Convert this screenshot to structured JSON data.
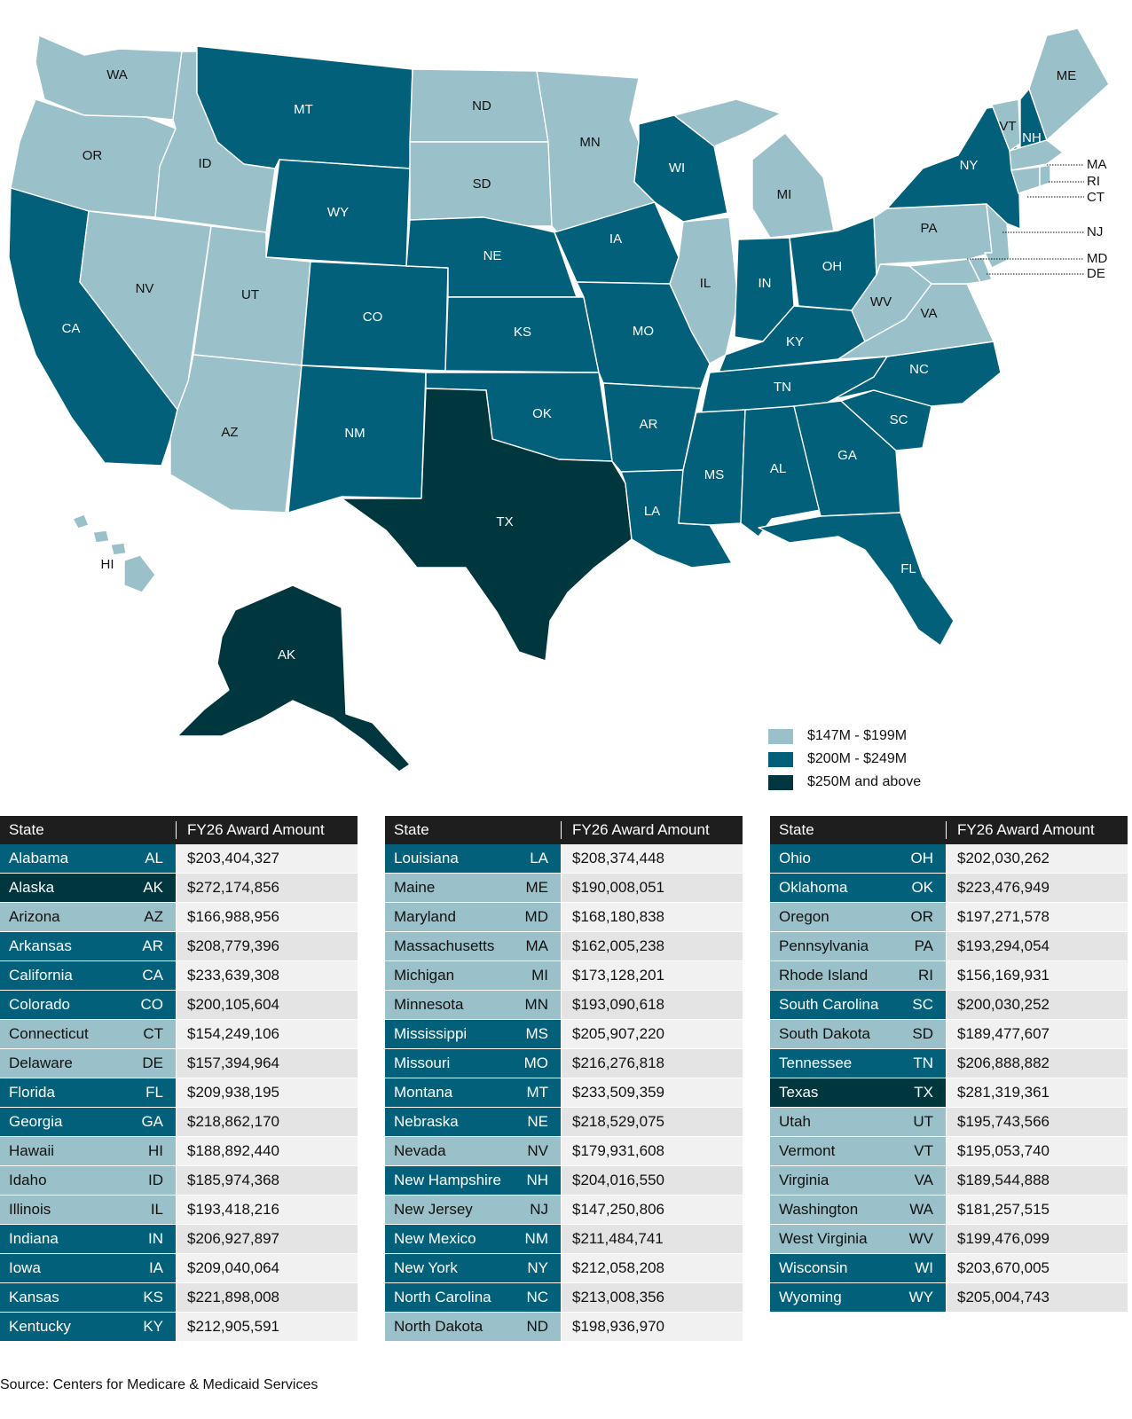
{
  "colors": {
    "low": "#9ac0ca",
    "mid": "#03607a",
    "high": "#00373e",
    "table_header": "#1e1e1e"
  },
  "legend": [
    {
      "label": "$147M - $199M",
      "tier": "low"
    },
    {
      "label": "$200M - $249M",
      "tier": "mid"
    },
    {
      "label": "$250M and above",
      "tier": "high"
    }
  ],
  "map_labels": {
    "WA": "WA",
    "OR": "OR",
    "CA": "CA",
    "ID": "ID",
    "NV": "NV",
    "MT": "MT",
    "WY": "WY",
    "UT": "UT",
    "AZ": "AZ",
    "CO": "CO",
    "NM": "NM",
    "ND": "ND",
    "SD": "SD",
    "NE": "NE",
    "KS": "KS",
    "OK": "OK",
    "TX": "TX",
    "MN": "MN",
    "IA": "IA",
    "MO": "MO",
    "AR": "AR",
    "LA": "LA",
    "WI": "WI",
    "IL": "IL",
    "MI": "MI",
    "IN": "IN",
    "OH": "OH",
    "KY": "KY",
    "TN": "TN",
    "MS": "MS",
    "AL": "AL",
    "GA": "GA",
    "FL": "FL",
    "SC": "SC",
    "NC": "NC",
    "VA": "VA",
    "WV": "WV",
    "PA": "PA",
    "NY": "NY",
    "VT": "VT",
    "NH": "NH",
    "ME": "ME",
    "HI": "HI",
    "AK": "AK",
    "MA": "MA",
    "RI": "RI",
    "CT": "CT",
    "NJ": "NJ",
    "MD": "MD",
    "DE": "DE"
  },
  "table": {
    "col_state": "State",
    "col_amount": "FY26 Award Amount",
    "columns": [
      [
        {
          "name": "Alabama",
          "abbr": "AL",
          "amount": "$203,404,327",
          "tier": "mid"
        },
        {
          "name": "Alaska",
          "abbr": "AK",
          "amount": "$272,174,856",
          "tier": "high"
        },
        {
          "name": "Arizona",
          "abbr": "AZ",
          "amount": "$166,988,956",
          "tier": "low"
        },
        {
          "name": "Arkansas",
          "abbr": "AR",
          "amount": "$208,779,396",
          "tier": "mid"
        },
        {
          "name": "California",
          "abbr": "CA",
          "amount": "$233,639,308",
          "tier": "mid"
        },
        {
          "name": "Colorado",
          "abbr": "CO",
          "amount": "$200,105,604",
          "tier": "mid"
        },
        {
          "name": "Connecticut",
          "abbr": "CT",
          "amount": "$154,249,106",
          "tier": "low"
        },
        {
          "name": "Delaware",
          "abbr": "DE",
          "amount": "$157,394,964",
          "tier": "low"
        },
        {
          "name": "Florida",
          "abbr": "FL",
          "amount": "$209,938,195",
          "tier": "mid"
        },
        {
          "name": "Georgia",
          "abbr": "GA",
          "amount": "$218,862,170",
          "tier": "mid"
        },
        {
          "name": "Hawaii",
          "abbr": "HI",
          "amount": "$188,892,440",
          "tier": "low"
        },
        {
          "name": "Idaho",
          "abbr": "ID",
          "amount": "$185,974,368",
          "tier": "low"
        },
        {
          "name": "Illinois",
          "abbr": "IL",
          "amount": "$193,418,216",
          "tier": "low"
        },
        {
          "name": "Indiana",
          "abbr": "IN",
          "amount": "$206,927,897",
          "tier": "mid"
        },
        {
          "name": "Iowa",
          "abbr": "IA",
          "amount": "$209,040,064",
          "tier": "mid"
        },
        {
          "name": "Kansas",
          "abbr": "KS",
          "amount": "$221,898,008",
          "tier": "mid"
        },
        {
          "name": "Kentucky",
          "abbr": "KY",
          "amount": "$212,905,591",
          "tier": "mid"
        }
      ],
      [
        {
          "name": "Louisiana",
          "abbr": "LA",
          "amount": "$208,374,448",
          "tier": "mid"
        },
        {
          "name": "Maine",
          "abbr": "ME",
          "amount": "$190,008,051",
          "tier": "low"
        },
        {
          "name": "Maryland",
          "abbr": "MD",
          "amount": "$168,180,838",
          "tier": "low"
        },
        {
          "name": "Massachusetts",
          "abbr": "MA",
          "amount": "$162,005,238",
          "tier": "low"
        },
        {
          "name": "Michigan",
          "abbr": "MI",
          "amount": "$173,128,201",
          "tier": "low"
        },
        {
          "name": "Minnesota",
          "abbr": "MN",
          "amount": "$193,090,618",
          "tier": "low"
        },
        {
          "name": "Mississippi",
          "abbr": "MS",
          "amount": "$205,907,220",
          "tier": "mid"
        },
        {
          "name": "Missouri",
          "abbr": "MO",
          "amount": "$216,276,818",
          "tier": "mid"
        },
        {
          "name": "Montana",
          "abbr": "MT",
          "amount": "$233,509,359",
          "tier": "mid"
        },
        {
          "name": "Nebraska",
          "abbr": "NE",
          "amount": "$218,529,075",
          "tier": "mid"
        },
        {
          "name": "Nevada",
          "abbr": "NV",
          "amount": "$179,931,608",
          "tier": "low"
        },
        {
          "name": "New Hampshire",
          "abbr": "NH",
          "amount": "$204,016,550",
          "tier": "mid"
        },
        {
          "name": "New Jersey",
          "abbr": "NJ",
          "amount": "$147,250,806",
          "tier": "low"
        },
        {
          "name": "New Mexico",
          "abbr": "NM",
          "amount": "$211,484,741",
          "tier": "mid"
        },
        {
          "name": "New York",
          "abbr": "NY",
          "amount": "$212,058,208",
          "tier": "mid"
        },
        {
          "name": "North Carolina",
          "abbr": "NC",
          "amount": "$213,008,356",
          "tier": "mid"
        },
        {
          "name": "North Dakota",
          "abbr": "ND",
          "amount": "$198,936,970",
          "tier": "low"
        }
      ],
      [
        {
          "name": "Ohio",
          "abbr": "OH",
          "amount": "$202,030,262",
          "tier": "mid"
        },
        {
          "name": "Oklahoma",
          "abbr": "OK",
          "amount": "$223,476,949",
          "tier": "mid"
        },
        {
          "name": "Oregon",
          "abbr": "OR",
          "amount": "$197,271,578",
          "tier": "low"
        },
        {
          "name": "Pennsylvania",
          "abbr": "PA",
          "amount": "$193,294,054",
          "tier": "low"
        },
        {
          "name": "Rhode Island",
          "abbr": "RI",
          "amount": "$156,169,931",
          "tier": "low"
        },
        {
          "name": "South Carolina",
          "abbr": "SC",
          "amount": "$200,030,252",
          "tier": "mid"
        },
        {
          "name": "South Dakota",
          "abbr": "SD",
          "amount": "$189,477,607",
          "tier": "low"
        },
        {
          "name": "Tennessee",
          "abbr": "TN",
          "amount": "$206,888,882",
          "tier": "mid"
        },
        {
          "name": "Texas",
          "abbr": "TX",
          "amount": "$281,319,361",
          "tier": "high"
        },
        {
          "name": "Utah",
          "abbr": "UT",
          "amount": "$195,743,566",
          "tier": "low"
        },
        {
          "name": "Vermont",
          "abbr": "VT",
          "amount": "$195,053,740",
          "tier": "low"
        },
        {
          "name": "Virginia",
          "abbr": "VA",
          "amount": "$189,544,888",
          "tier": "low"
        },
        {
          "name": "Washington",
          "abbr": "WA",
          "amount": "$181,257,515",
          "tier": "low"
        },
        {
          "name": "West Virginia",
          "abbr": "WV",
          "amount": "$199,476,099",
          "tier": "low"
        },
        {
          "name": "Wisconsin",
          "abbr": "WI",
          "amount": "$203,670,005",
          "tier": "mid"
        },
        {
          "name": "Wyoming",
          "abbr": "WY",
          "amount": "$205,004,743",
          "tier": "mid"
        }
      ]
    ]
  },
  "source": "Source: Centers for Medicare & Medicaid Services"
}
